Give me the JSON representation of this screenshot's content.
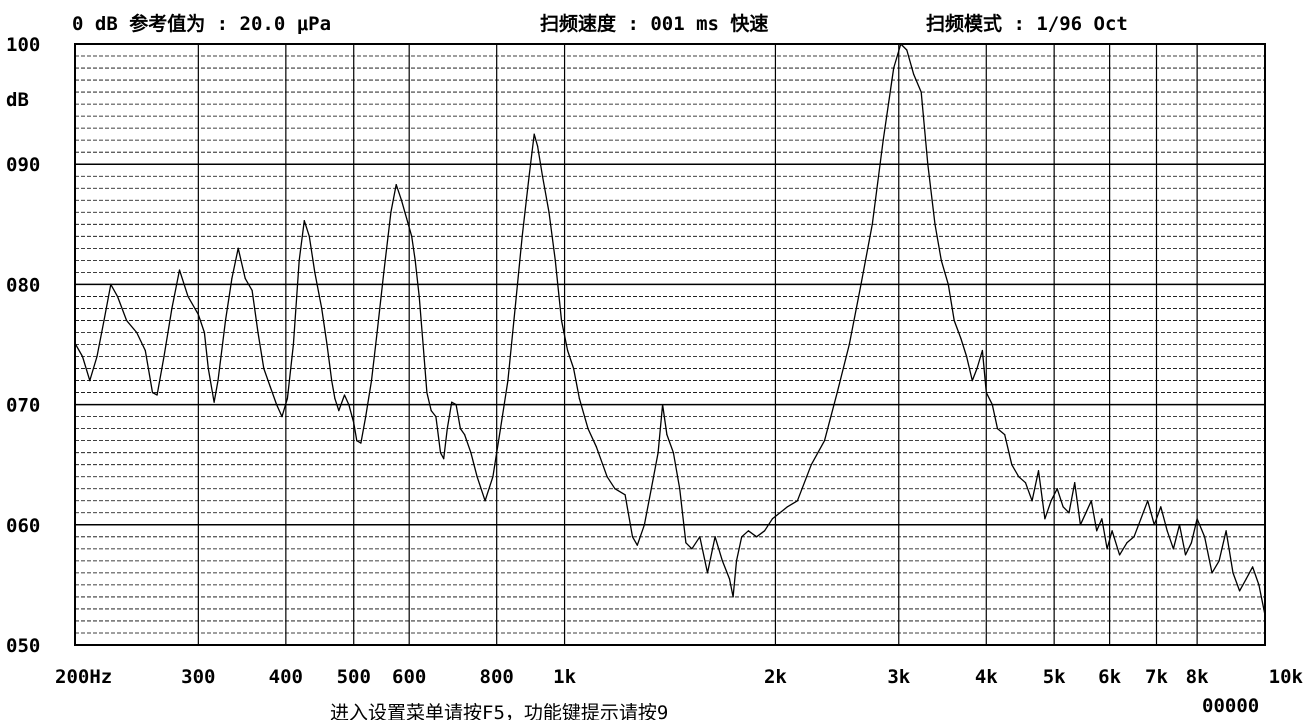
{
  "header": {
    "ref_label": "0 dB 参考值为 : 20.0 μPa",
    "sweep_speed_label": "扫频速度 : 001 ms 快速",
    "sweep_mode_label": "扫频模式 : 1/96  Oct"
  },
  "footer": {
    "hint": "进入设置菜单请按F5，功能键提示请按9",
    "counter": "00000"
  },
  "chart_data": {
    "type": "line",
    "title": "",
    "xlabel": "",
    "ylabel": "dB",
    "x_scale": "log",
    "xlim": [
      200,
      10000
    ],
    "ylim": [
      50,
      100
    ],
    "y_ticks": [
      {
        "value": 100,
        "label": "100"
      },
      {
        "value": 90,
        "label": "090"
      },
      {
        "value": 80,
        "label": "080"
      },
      {
        "value": 70,
        "label": "070"
      },
      {
        "value": 60,
        "label": "060"
      },
      {
        "value": 50,
        "label": "050"
      }
    ],
    "x_ticks": [
      {
        "value": 200,
        "label": "200Hz"
      },
      {
        "value": 300,
        "label": "300"
      },
      {
        "value": 400,
        "label": "400"
      },
      {
        "value": 500,
        "label": "500"
      },
      {
        "value": 600,
        "label": "600"
      },
      {
        "value": 800,
        "label": "800"
      },
      {
        "value": 1000,
        "label": "1k"
      },
      {
        "value": 2000,
        "label": "2k"
      },
      {
        "value": 3000,
        "label": "3k"
      },
      {
        "value": 4000,
        "label": "4k"
      },
      {
        "value": 5000,
        "label": "5k"
      },
      {
        "value": 6000,
        "label": "6k"
      },
      {
        "value": 7000,
        "label": "7k"
      },
      {
        "value": 8000,
        "label": "8k"
      },
      {
        "value": 10000,
        "label": "10k"
      }
    ],
    "grid": {
      "major_db": 10,
      "minor_db": 1,
      "vertical_at_ticks": true
    },
    "series": [
      {
        "values": [
          [
            200,
            75.1
          ],
          [
            205,
            74.0
          ],
          [
            210,
            72.0
          ],
          [
            215,
            74.0
          ],
          [
            220,
            77.0
          ],
          [
            225,
            80.0
          ],
          [
            230,
            79.0
          ],
          [
            237,
            77.0
          ],
          [
            245,
            76.0
          ],
          [
            252,
            74.5
          ],
          [
            258,
            71.0
          ],
          [
            262,
            70.8
          ],
          [
            268,
            74.0
          ],
          [
            275,
            78.0
          ],
          [
            282,
            81.2
          ],
          [
            290,
            79.0
          ],
          [
            300,
            77.5
          ],
          [
            306,
            76.0
          ],
          [
            310,
            73.0
          ],
          [
            316,
            70.2
          ],
          [
            320,
            72.0
          ],
          [
            328,
            77.0
          ],
          [
            335,
            80.5
          ],
          [
            342,
            83.0
          ],
          [
            350,
            80.5
          ],
          [
            358,
            79.5
          ],
          [
            365,
            76.0
          ],
          [
            372,
            73.0
          ],
          [
            380,
            71.5
          ],
          [
            388,
            70.0
          ],
          [
            395,
            69.0
          ],
          [
            402,
            70.5
          ],
          [
            410,
            75.0
          ],
          [
            418,
            82.0
          ],
          [
            425,
            85.3
          ],
          [
            432,
            84.0
          ],
          [
            440,
            81.0
          ],
          [
            450,
            78.0
          ],
          [
            458,
            75.0
          ],
          [
            465,
            72.0
          ],
          [
            470,
            70.5
          ],
          [
            476,
            69.5
          ],
          [
            485,
            70.8
          ],
          [
            492,
            70.0
          ],
          [
            500,
            68.5
          ],
          [
            505,
            67.0
          ],
          [
            512,
            66.8
          ],
          [
            520,
            69.0
          ],
          [
            530,
            72.0
          ],
          [
            540,
            76.0
          ],
          [
            552,
            81.0
          ],
          [
            565,
            86.0
          ],
          [
            575,
            88.3
          ],
          [
            585,
            87.0
          ],
          [
            595,
            85.5
          ],
          [
            605,
            84.0
          ],
          [
            612,
            82.0
          ],
          [
            620,
            79.0
          ],
          [
            628,
            75.0
          ],
          [
            636,
            71.0
          ],
          [
            645,
            69.5
          ],
          [
            655,
            69.0
          ],
          [
            665,
            66.0
          ],
          [
            672,
            65.5
          ],
          [
            680,
            68.0
          ],
          [
            690,
            70.2
          ],
          [
            700,
            70.0
          ],
          [
            710,
            68.0
          ],
          [
            720,
            67.5
          ],
          [
            735,
            66.0
          ],
          [
            750,
            64.0
          ],
          [
            770,
            62.0
          ],
          [
            790,
            64.0
          ],
          [
            810,
            68.0
          ],
          [
            830,
            72.0
          ],
          [
            850,
            78.0
          ],
          [
            870,
            84.0
          ],
          [
            890,
            89.0
          ],
          [
            905,
            92.5
          ],
          [
            915,
            91.5
          ],
          [
            930,
            89.0
          ],
          [
            950,
            86.0
          ],
          [
            970,
            82.0
          ],
          [
            990,
            77.0
          ],
          [
            1010,
            74.5
          ],
          [
            1030,
            73.0
          ],
          [
            1050,
            70.5
          ],
          [
            1080,
            68.0
          ],
          [
            1110,
            66.5
          ],
          [
            1150,
            64.0
          ],
          [
            1180,
            63.0
          ],
          [
            1220,
            62.5
          ],
          [
            1250,
            59.0
          ],
          [
            1270,
            58.3
          ],
          [
            1300,
            60.0
          ],
          [
            1330,
            63.0
          ],
          [
            1360,
            66.0
          ],
          [
            1380,
            70.0
          ],
          [
            1400,
            67.5
          ],
          [
            1430,
            66.0
          ],
          [
            1460,
            63.0
          ],
          [
            1490,
            58.5
          ],
          [
            1520,
            58.0
          ],
          [
            1560,
            59.0
          ],
          [
            1600,
            56.0
          ],
          [
            1640,
            59.0
          ],
          [
            1680,
            57.0
          ],
          [
            1720,
            55.5
          ],
          [
            1740,
            54.0
          ],
          [
            1760,
            57.0
          ],
          [
            1790,
            59.0
          ],
          [
            1830,
            59.5
          ],
          [
            1880,
            59.0
          ],
          [
            1930,
            59.5
          ],
          [
            1980,
            60.5
          ],
          [
            2030,
            61.0
          ],
          [
            2080,
            61.5
          ],
          [
            2150,
            62.0
          ],
          [
            2250,
            65.0
          ],
          [
            2350,
            67.0
          ],
          [
            2450,
            71.0
          ],
          [
            2550,
            75.0
          ],
          [
            2650,
            80.0
          ],
          [
            2750,
            85.0
          ],
          [
            2850,
            92.0
          ],
          [
            2950,
            98.0
          ],
          [
            3020,
            100.0
          ],
          [
            3080,
            99.5
          ],
          [
            3150,
            97.5
          ],
          [
            3230,
            96.0
          ],
          [
            3300,
            90.0
          ],
          [
            3380,
            85.0
          ],
          [
            3450,
            82.0
          ],
          [
            3530,
            80.0
          ],
          [
            3600,
            77.0
          ],
          [
            3680,
            75.5
          ],
          [
            3750,
            74.0
          ],
          [
            3820,
            72.0
          ],
          [
            3880,
            73.0
          ],
          [
            3950,
            74.5
          ],
          [
            4000,
            71.0
          ],
          [
            4080,
            70.0
          ],
          [
            4150,
            68.0
          ],
          [
            4250,
            67.5
          ],
          [
            4350,
            65.0
          ],
          [
            4450,
            64.0
          ],
          [
            4550,
            63.5
          ],
          [
            4650,
            62.0
          ],
          [
            4750,
            64.5
          ],
          [
            4850,
            60.5
          ],
          [
            4950,
            62.0
          ],
          [
            5050,
            63.0
          ],
          [
            5150,
            61.5
          ],
          [
            5250,
            61.0
          ],
          [
            5350,
            63.5
          ],
          [
            5450,
            60.0
          ],
          [
            5550,
            61.0
          ],
          [
            5650,
            62.0
          ],
          [
            5750,
            59.5
          ],
          [
            5850,
            60.5
          ],
          [
            5950,
            58.0
          ],
          [
            6050,
            59.5
          ],
          [
            6200,
            57.5
          ],
          [
            6350,
            58.5
          ],
          [
            6500,
            59.0
          ],
          [
            6650,
            60.5
          ],
          [
            6800,
            62.0
          ],
          [
            6950,
            60.0
          ],
          [
            7100,
            61.5
          ],
          [
            7250,
            59.5
          ],
          [
            7400,
            58.0
          ],
          [
            7550,
            60.0
          ],
          [
            7700,
            57.5
          ],
          [
            7850,
            58.5
          ],
          [
            8000,
            60.5
          ],
          [
            8200,
            59.0
          ],
          [
            8400,
            56.0
          ],
          [
            8600,
            57.0
          ],
          [
            8800,
            59.5
          ],
          [
            9000,
            56.0
          ],
          [
            9200,
            54.5
          ],
          [
            9400,
            55.5
          ],
          [
            9600,
            56.5
          ],
          [
            9800,
            55.0
          ],
          [
            10000,
            52.5
          ]
        ]
      }
    ]
  }
}
